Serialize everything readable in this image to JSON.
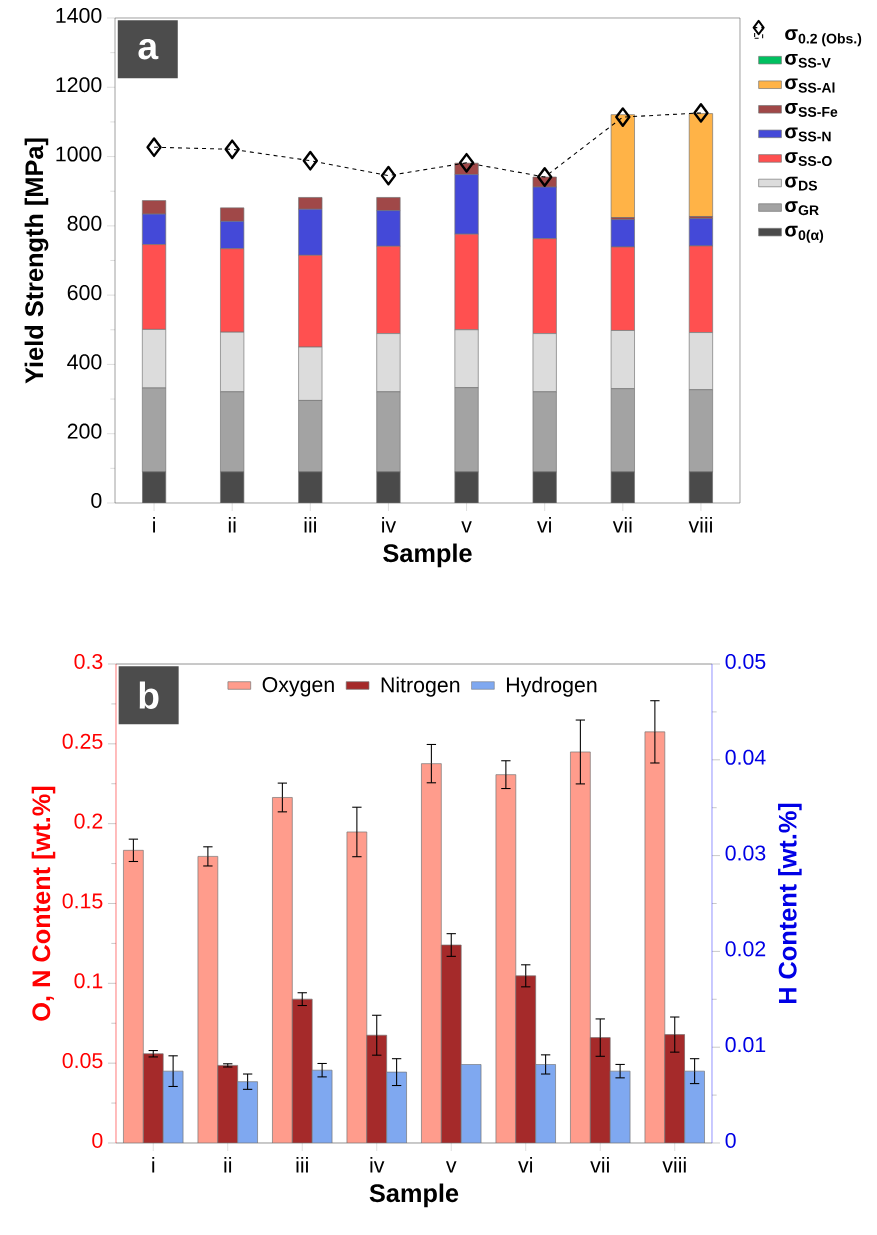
{
  "chart_data": [
    {
      "type": "bar",
      "title": "a",
      "stacked": true,
      "legend": "right",
      "xlabel": "Sample",
      "ylabel": "Yield Strength [MPa]",
      "categories": [
        "i",
        "ii",
        "iii",
        "iv",
        "v",
        "vi",
        "vii",
        "viii"
      ],
      "ylim": [
        0,
        1400
      ],
      "yticks": [
        0,
        200,
        400,
        600,
        800,
        1000,
        1200,
        1400
      ],
      "series": [
        {
          "name": "σ$_{0(α)}$",
          "color": "#4a4a4a",
          "values": [
            90,
            90,
            90,
            90,
            90,
            90,
            90,
            90
          ]
        },
        {
          "name": "σ$_{GR}$",
          "color": "#a3a3a3",
          "values": [
            242,
            231,
            206,
            231,
            243,
            231,
            240,
            237
          ]
        },
        {
          "name": "σ$_{DS}$",
          "color": "#dcdcdc",
          "values": [
            169,
            172,
            154,
            168,
            167,
            168,
            168,
            165
          ]
        },
        {
          "name": "σ$_{SS-O}$",
          "color": "#ff5050",
          "values": [
            245,
            241,
            265,
            252,
            276,
            274,
            241,
            250
          ]
        },
        {
          "name": "σ$_{SS-N}$",
          "color": "#4449d8",
          "values": [
            88,
            79,
            133,
            103,
            172,
            149,
            79,
            79
          ]
        },
        {
          "name": "σ$_{SS-Fe}$",
          "color": "#a04848",
          "values": [
            39,
            39,
            34,
            38,
            33,
            29,
            6,
            6
          ]
        },
        {
          "name": "σ$_{SS-Al}$",
          "color": "#ffb347",
          "values": [
            0,
            0,
            0,
            0,
            0,
            0,
            297,
            297
          ]
        },
        {
          "name": "σ$_{SS-V}$",
          "color": "#00c060",
          "values": [
            0,
            0,
            0,
            0,
            0,
            0,
            0,
            0
          ]
        },
        {
          "name": "σ$_{0.2 (Obs.)}$",
          "type": "line",
          "color": "#000000",
          "marker": "diamond",
          "line_style": "dashed",
          "values": [
            1027,
            1021,
            988,
            945,
            982,
            941,
            1114,
            1126
          ]
        }
      ]
    },
    {
      "type": "bar",
      "title": "b",
      "legend": "top",
      "xlabel": "Sample",
      "ylabel": "O, N Content [wt.%]",
      "y2label": "H Content [wt.%]",
      "categories": [
        "i",
        "ii",
        "iii",
        "iv",
        "v",
        "vi",
        "vii",
        "viii"
      ],
      "ylim": [
        0,
        0.3
      ],
      "yticks": [
        0,
        0.05,
        0.1,
        0.15,
        0.2,
        0.25,
        0.3
      ],
      "y2lim": [
        0,
        0.05
      ],
      "y2ticks": [
        0,
        0.01,
        0.02,
        0.03,
        0.04,
        0.05
      ],
      "series": [
        {
          "name": "Oxygen",
          "color": "#ff9c8c",
          "values": [
            0.1833,
            0.1795,
            0.2164,
            0.1948,
            0.2376,
            0.2307,
            0.2449,
            0.2575
          ],
          "errors": [
            0.007,
            0.006,
            0.009,
            0.0155,
            0.012,
            0.0087,
            0.02,
            0.0195
          ]
        },
        {
          "name": "Nitrogen",
          "color": "#a52a2a",
          "values": [
            0.0559,
            0.0486,
            0.0901,
            0.0675,
            0.124,
            0.1047,
            0.066,
            0.0679
          ],
          "errors": [
            0.002,
            0.001,
            0.004,
            0.0125,
            0.0071,
            0.0069,
            0.0117,
            0.011
          ]
        },
        {
          "name": "Hydrogen",
          "color": "#7fa8f0",
          "axis": "y2",
          "values": [
            0.0075,
            0.0064,
            0.0076,
            0.0074,
            0.0082,
            0.0082,
            0.0075,
            0.0075
          ],
          "errors": [
            0.0016,
            0.0008,
            0.0007,
            0.0014,
            null,
            0.001,
            0.0007,
            0.0013
          ]
        }
      ]
    }
  ]
}
